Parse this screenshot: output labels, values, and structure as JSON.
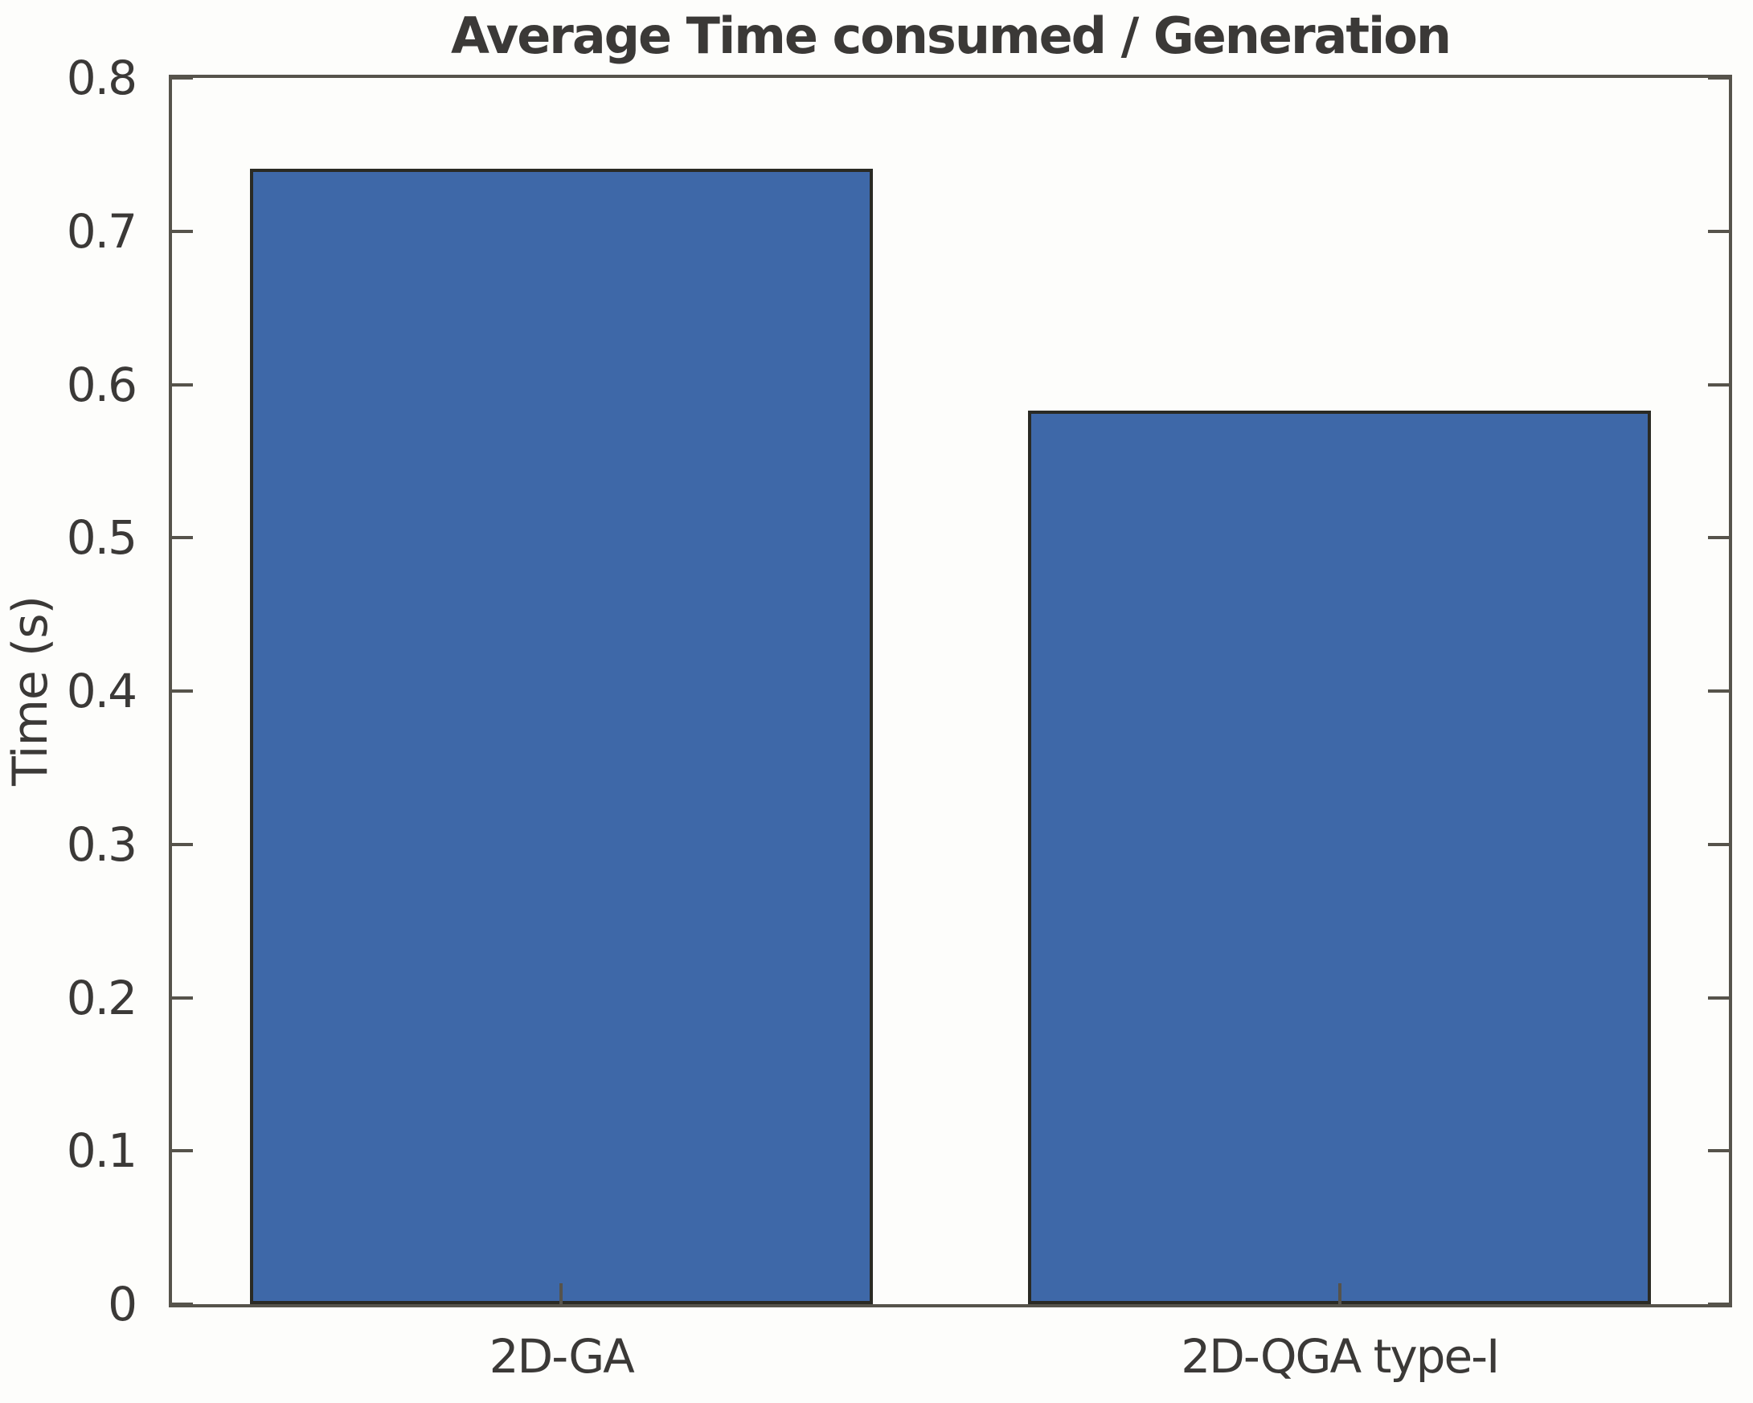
{
  "chart_data": {
    "type": "bar",
    "title": "Average Time consumed / Generation",
    "xlabel": "",
    "ylabel": "Time (s)",
    "categories": [
      "2D-GA",
      "2D-QGA type-I"
    ],
    "values": [
      0.741,
      0.583
    ],
    "ylim": [
      0,
      0.8
    ],
    "yticks": [
      0,
      0.1,
      0.2,
      0.3,
      0.4,
      0.5,
      0.6,
      0.7,
      0.8
    ],
    "ytick_labels": [
      "0",
      "0.1",
      "0.2",
      "0.3",
      "0.4",
      "0.5",
      "0.6",
      "0.7",
      "0.8"
    ],
    "bar_width_fraction": 0.8,
    "grid": false,
    "legend": "none",
    "box": true,
    "tick_direction": "in"
  },
  "colors": {
    "bar_fill": "#3e68a8",
    "bar_edge": "#2a2a24",
    "axis": "#56534b",
    "text": "#3b3937",
    "background": "#fdfdfb"
  }
}
